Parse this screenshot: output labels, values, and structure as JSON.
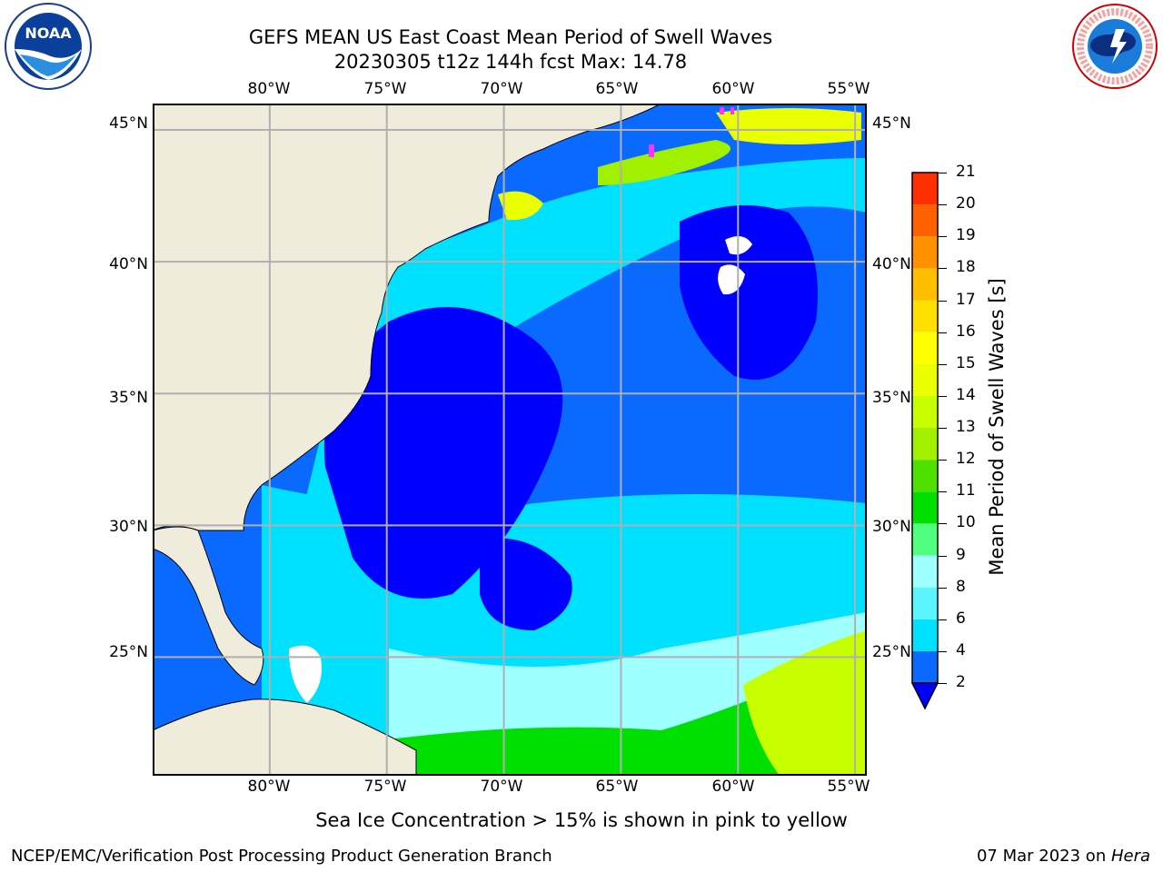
{
  "title": {
    "line1": "GEFS MEAN US East Coast Mean Period of Swell Waves",
    "line2": "20230305 t12z 144h fcst   Max: 14.78"
  },
  "logos": {
    "left": {
      "text": "NOAA",
      "ring": "NATIONAL OCEANIC AND ATMOSPHERIC ADMINISTRATION · U.S. DEPARTMENT OF COMMERCE"
    },
    "right": {
      "ring": "NATIONAL WEATHER SERVICE"
    }
  },
  "map": {
    "lon_labels": [
      "80°W",
      "75°W",
      "70°W",
      "65°W",
      "60°W",
      "55°W"
    ],
    "lat_labels": [
      "45°N",
      "40°N",
      "35°N",
      "30°N",
      "25°N"
    ],
    "lon_range": [
      -85,
      -54.5
    ],
    "lat_range": [
      20.5,
      46
    ],
    "land_color": "#efecdc",
    "grid_color": "#b0b0b0"
  },
  "colorbar": {
    "label": "Mean Period of Swell Waves [s]",
    "ticks": [
      "2",
      "4",
      "6",
      "8",
      "9",
      "10",
      "11",
      "12",
      "13",
      "14",
      "15",
      "16",
      "17",
      "18",
      "19",
      "20",
      "21"
    ],
    "colors": [
      "#0a6aff",
      "#00e0ff",
      "#5af5ff",
      "#a0ffff",
      "#50ff80",
      "#00e000",
      "#50e000",
      "#a0f000",
      "#c8ff00",
      "#eaff00",
      "#ffff00",
      "#ffe000",
      "#ffbe00",
      "#ff9000",
      "#ff6000",
      "#ff3000"
    ],
    "under_color": "#0000ff"
  },
  "footer": {
    "caption": "Sea Ice Concentration > 15% is shown in pink to yellow",
    "left": "NCEP/EMC/Verification Post Processing Product Generation Branch",
    "date": "07 Mar 2023 on ",
    "machine": "Hera"
  }
}
